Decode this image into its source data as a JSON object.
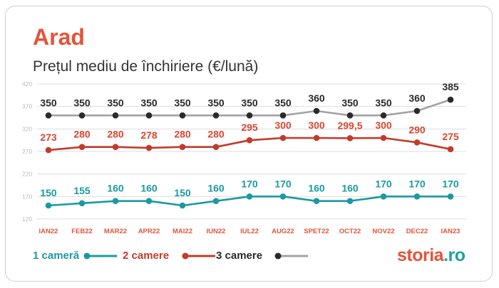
{
  "title": "Arad",
  "subtitle": "Prețul mediu de închiriere (€/lună)",
  "colors": {
    "accent": "#e4543a",
    "teal": "#1a9aa0",
    "red": "#c23b2a",
    "gray": "#a3a3a3",
    "dark": "#2a2a2a"
  },
  "chart_data": {
    "type": "line",
    "title": "Prețul mediu de închiriere (€/lună)",
    "categories": [
      "IAN22",
      "FEB22",
      "MAR22",
      "APR22",
      "MAI22",
      "IUN22",
      "IUL22",
      "AUG22",
      "SPET22",
      "OCT22",
      "NOV22",
      "DEC22",
      "IAN23"
    ],
    "ylim": [
      120,
      420
    ],
    "yticks": [
      420,
      370,
      320,
      270,
      220,
      170,
      120
    ],
    "grid": true,
    "legend_position": "bottom-left",
    "series": [
      {
        "name": "1 cameră",
        "color": "#1a9aa0",
        "marker_color": "#1a9aa0",
        "label_color": "#1a9aa0",
        "values": [
          150,
          155,
          160,
          160,
          150,
          160,
          170,
          170,
          160,
          160,
          170,
          170,
          170
        ],
        "labels": [
          "150",
          "155",
          "160",
          "160",
          "150",
          "160",
          "170",
          "170",
          "160",
          "160",
          "170",
          "170",
          "170"
        ]
      },
      {
        "name": "2 camere",
        "color": "#c23b2a",
        "marker_color": "#c23b2a",
        "label_color": "#d9472f",
        "values": [
          273,
          280,
          280,
          278,
          280,
          280,
          295,
          300,
          300,
          299.5,
          300,
          290,
          275
        ],
        "labels": [
          "273",
          "280",
          "280",
          "278",
          "280",
          "280",
          "295",
          "300",
          "300",
          "299,5",
          "300",
          "290",
          "275"
        ]
      },
      {
        "name": "3 camere",
        "color": "#a3a3a3",
        "marker_color": "#2a2a2a",
        "label_color": "#2a2a2a",
        "values": [
          350,
          350,
          350,
          350,
          350,
          350,
          350,
          350,
          360,
          350,
          350,
          360,
          385
        ],
        "labels": [
          "350",
          "350",
          "350",
          "350",
          "350",
          "350",
          "350",
          "350",
          "360",
          "350",
          "350",
          "360",
          "385"
        ]
      }
    ]
  },
  "legend": [
    {
      "label": "1 cameră",
      "color": "#1a9aa0",
      "marker": "#1a9aa0"
    },
    {
      "label": "2 camere",
      "color": "#c23b2a",
      "marker": "#c23b2a"
    },
    {
      "label": "3 camere",
      "color": "#a3a3a3",
      "marker": "#2a2a2a"
    }
  ],
  "brand": {
    "part1": "storia",
    "part2": ".ro"
  }
}
